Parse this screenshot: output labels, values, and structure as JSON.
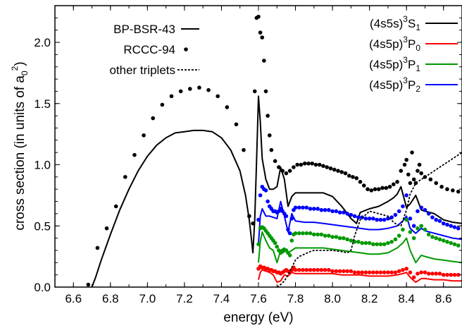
{
  "chart_data": {
    "type": "line",
    "xlabel": "energy (eV)",
    "ylabel": {
      "main": "cross section (in units of a",
      "sub": "0",
      "sup": "2",
      "close": ")"
    },
    "xlim": [
      6.5,
      8.7
    ],
    "ylim": [
      0.0,
      2.3
    ],
    "xticks": [
      "6.6",
      "6.8",
      "7.0",
      "7.2",
      "7.4",
      "7.6",
      "7.8",
      "8.0",
      "8.2",
      "8.4",
      "8.6"
    ],
    "yticks": [
      "0.0",
      "0.5",
      "1.0",
      "1.5",
      "2.0"
    ],
    "legend_methods": [
      {
        "label": "BP-BSR-43",
        "style": "solid"
      },
      {
        "label": "RCCC-94",
        "style": "dots"
      },
      {
        "label": "other triplets",
        "style": "dashed"
      }
    ],
    "legend_states": [
      {
        "pre": "(4s5s)",
        "sup": "3",
        "term": "S",
        "sub": "1",
        "color": "#000000"
      },
      {
        "pre": "(4s5p)",
        "sup": "3",
        "term": "P",
        "sub": "0",
        "color": "#ff0000"
      },
      {
        "pre": "(4s5p)",
        "sup": "3",
        "term": "P",
        "sub": "1",
        "color": "#009900"
      },
      {
        "pre": "(4s5p)",
        "sup": "3",
        "term": "P",
        "sub": "2",
        "color": "#0000ff"
      }
    ],
    "series": [
      {
        "name": "(4s5s)3S1 BP-BSR-43",
        "color": "#000000",
        "style": "solid",
        "x": [
          6.7,
          6.72,
          6.75,
          6.8,
          6.85,
          6.9,
          6.95,
          7.0,
          7.05,
          7.1,
          7.15,
          7.2,
          7.25,
          7.3,
          7.35,
          7.4,
          7.45,
          7.5,
          7.53,
          7.55,
          7.56,
          7.57,
          7.58,
          7.59,
          7.6,
          7.61,
          7.62,
          7.64,
          7.66,
          7.68,
          7.7,
          7.72,
          7.74,
          7.76,
          7.78,
          7.8,
          7.85,
          7.9,
          7.95,
          8.0,
          8.05,
          8.1,
          8.13,
          8.15,
          8.2,
          8.25,
          8.3,
          8.33,
          8.35,
          8.37,
          8.4,
          8.42,
          8.45,
          8.48,
          8.5,
          8.55,
          8.6,
          8.65,
          8.7
        ],
        "y": [
          0.0,
          0.08,
          0.22,
          0.43,
          0.63,
          0.8,
          0.95,
          1.07,
          1.16,
          1.22,
          1.26,
          1.27,
          1.28,
          1.28,
          1.27,
          1.22,
          1.12,
          0.95,
          0.75,
          0.55,
          0.42,
          0.28,
          0.55,
          1.05,
          1.56,
          1.35,
          1.05,
          0.88,
          0.8,
          0.8,
          0.82,
          0.98,
          0.88,
          0.66,
          0.74,
          0.77,
          0.77,
          0.77,
          0.77,
          0.74,
          0.66,
          0.56,
          0.52,
          0.61,
          0.64,
          0.66,
          0.7,
          0.73,
          0.76,
          0.82,
          0.65,
          0.68,
          0.75,
          0.63,
          0.62,
          0.6,
          0.55,
          0.53,
          0.52
        ]
      },
      {
        "name": "(4s5s)3S1 RCCC-94",
        "color": "#000000",
        "style": "dots",
        "x": [
          6.68,
          6.73,
          6.78,
          6.83,
          6.88,
          6.93,
          6.98,
          7.03,
          7.08,
          7.13,
          7.18,
          7.23,
          7.28,
          7.33,
          7.38,
          7.43,
          7.48,
          7.52,
          7.55,
          7.57,
          7.58,
          7.59,
          7.6,
          7.61,
          7.62,
          7.63,
          7.64,
          7.65,
          7.66,
          7.67,
          7.69,
          7.71,
          7.73,
          7.75,
          7.77,
          7.79,
          7.81,
          7.83,
          7.85,
          7.87,
          7.89,
          7.91,
          7.93,
          7.95,
          7.97,
          7.99,
          8.01,
          8.03,
          8.05,
          8.07,
          8.09,
          8.11,
          8.13,
          8.15,
          8.17,
          8.19,
          8.21,
          8.23,
          8.25,
          8.27,
          8.29,
          8.31,
          8.33,
          8.35,
          8.37,
          8.39,
          8.4,
          8.41,
          8.42,
          8.43,
          8.44,
          8.45,
          8.46,
          8.47,
          8.48,
          8.5,
          8.53,
          8.56,
          8.59,
          8.62,
          8.65,
          8.68
        ],
        "y": [
          0.02,
          0.32,
          0.48,
          0.66,
          0.9,
          1.08,
          1.24,
          1.38,
          1.49,
          1.56,
          1.6,
          1.62,
          1.63,
          1.61,
          1.56,
          1.47,
          1.33,
          1.12,
          0.58,
          0.52,
          1.6,
          2.2,
          2.21,
          2.08,
          2.04,
          1.85,
          1.6,
          1.4,
          1.24,
          1.12,
          1.03,
          0.98,
          0.95,
          0.93,
          0.95,
          0.98,
          1.0,
          1.0,
          1.01,
          1.01,
          1.01,
          1.0,
          1.0,
          0.99,
          0.98,
          0.97,
          0.96,
          0.95,
          0.94,
          0.93,
          0.91,
          0.9,
          0.89,
          0.86,
          0.83,
          0.8,
          0.79,
          0.8,
          0.8,
          0.81,
          0.81,
          0.82,
          0.84,
          0.86,
          0.95,
          1.0,
          1.04,
          0.92,
          0.85,
          1.1,
          0.88,
          0.85,
          0.95,
          1.0,
          0.93,
          0.9,
          0.88,
          0.85,
          0.82,
          0.8,
          0.79,
          0.78
        ]
      },
      {
        "name": "(4s5p)3P2 BP-BSR-43",
        "color": "#0000ff",
        "style": "solid",
        "x": [
          7.6,
          7.61,
          7.62,
          7.64,
          7.66,
          7.68,
          7.7,
          7.72,
          7.74,
          7.76,
          7.78,
          7.8,
          7.85,
          7.9,
          7.95,
          8.0,
          8.05,
          8.1,
          8.15,
          8.2,
          8.25,
          8.3,
          8.35,
          8.38,
          8.4,
          8.42,
          8.45,
          8.48,
          8.5,
          8.55,
          8.6,
          8.65,
          8.7
        ],
        "y": [
          0.35,
          0.58,
          0.64,
          0.58,
          0.58,
          0.57,
          0.56,
          0.7,
          0.58,
          0.45,
          0.6,
          0.54,
          0.53,
          0.53,
          0.52,
          0.51,
          0.5,
          0.49,
          0.48,
          0.47,
          0.47,
          0.48,
          0.5,
          0.54,
          0.58,
          0.48,
          0.44,
          0.48,
          0.46,
          0.44,
          0.42,
          0.4,
          0.39
        ]
      },
      {
        "name": "(4s5p)3P2 RCCC-94",
        "color": "#0000ff",
        "style": "dots",
        "x": [
          7.6,
          7.61,
          7.62,
          7.63,
          7.64,
          7.65,
          7.66,
          7.67,
          7.68,
          7.69,
          7.7,
          7.71,
          7.72,
          7.73,
          7.74,
          7.75,
          7.76,
          7.77,
          7.78,
          7.79,
          7.8,
          7.82,
          7.84,
          7.86,
          7.88,
          7.9,
          7.92,
          7.94,
          7.96,
          7.98,
          8.0,
          8.02,
          8.04,
          8.06,
          8.08,
          8.1,
          8.12,
          8.14,
          8.16,
          8.18,
          8.2,
          8.22,
          8.24,
          8.26,
          8.28,
          8.3,
          8.32,
          8.34,
          8.36,
          8.38,
          8.4,
          8.42,
          8.44,
          8.46,
          8.48,
          8.5,
          8.52,
          8.54,
          8.56,
          8.58,
          8.6,
          8.62,
          8.64,
          8.66,
          8.68
        ],
        "y": [
          0.55,
          0.75,
          0.82,
          0.8,
          0.79,
          0.7,
          0.66,
          0.64,
          0.62,
          0.62,
          0.61,
          0.62,
          0.64,
          0.62,
          0.6,
          0.58,
          0.47,
          0.44,
          0.56,
          0.63,
          0.65,
          0.65,
          0.65,
          0.65,
          0.64,
          0.64,
          0.64,
          0.63,
          0.63,
          0.63,
          0.62,
          0.62,
          0.61,
          0.61,
          0.6,
          0.59,
          0.58,
          0.57,
          0.57,
          0.56,
          0.56,
          0.56,
          0.55,
          0.55,
          0.55,
          0.56,
          0.57,
          0.59,
          0.62,
          0.66,
          0.75,
          0.56,
          0.5,
          0.62,
          0.65,
          0.63,
          0.6,
          0.57,
          0.55,
          0.54,
          0.52,
          0.51,
          0.5,
          0.49,
          0.48
        ]
      },
      {
        "name": "(4s5p)3P1 BP-BSR-43",
        "color": "#009900",
        "style": "solid",
        "x": [
          7.6,
          7.61,
          7.62,
          7.64,
          7.66,
          7.68,
          7.7,
          7.72,
          7.74,
          7.76,
          7.78,
          7.8,
          7.85,
          7.9,
          7.95,
          8.0,
          8.05,
          8.1,
          8.15,
          8.2,
          8.25,
          8.3,
          8.35,
          8.38,
          8.4,
          8.42,
          8.45,
          8.48,
          8.5,
          8.55,
          8.6,
          8.65,
          8.7
        ],
        "y": [
          0.2,
          0.37,
          0.45,
          0.38,
          0.32,
          0.3,
          0.2,
          0.3,
          0.32,
          0.28,
          0.3,
          0.32,
          0.32,
          0.32,
          0.32,
          0.31,
          0.3,
          0.29,
          0.28,
          0.27,
          0.27,
          0.28,
          0.32,
          0.36,
          0.4,
          0.3,
          0.2,
          0.26,
          0.25,
          0.23,
          0.22,
          0.21,
          0.2
        ]
      },
      {
        "name": "(4s5p)3P1 RCCC-94",
        "color": "#009900",
        "style": "dots",
        "x": [
          7.6,
          7.61,
          7.62,
          7.63,
          7.64,
          7.65,
          7.66,
          7.67,
          7.68,
          7.69,
          7.7,
          7.71,
          7.72,
          7.73,
          7.74,
          7.75,
          7.76,
          7.77,
          7.78,
          7.79,
          7.8,
          7.82,
          7.84,
          7.86,
          7.88,
          7.9,
          7.92,
          7.94,
          7.96,
          7.98,
          8.0,
          8.02,
          8.04,
          8.06,
          8.08,
          8.1,
          8.12,
          8.14,
          8.16,
          8.18,
          8.2,
          8.22,
          8.24,
          8.26,
          8.28,
          8.3,
          8.32,
          8.34,
          8.36,
          8.38,
          8.4,
          8.42,
          8.44,
          8.46,
          8.48,
          8.5,
          8.52,
          8.54,
          8.56,
          8.58,
          8.6,
          8.62,
          8.64,
          8.66,
          8.68
        ],
        "y": [
          0.35,
          0.48,
          0.49,
          0.48,
          0.46,
          0.44,
          0.42,
          0.4,
          0.38,
          0.36,
          0.33,
          0.3,
          0.28,
          0.29,
          0.3,
          0.3,
          0.28,
          0.26,
          0.38,
          0.43,
          0.44,
          0.44,
          0.44,
          0.44,
          0.44,
          0.43,
          0.43,
          0.43,
          0.42,
          0.42,
          0.41,
          0.41,
          0.4,
          0.4,
          0.39,
          0.38,
          0.37,
          0.37,
          0.36,
          0.36,
          0.36,
          0.35,
          0.35,
          0.35,
          0.35,
          0.36,
          0.37,
          0.39,
          0.42,
          0.47,
          0.55,
          0.45,
          0.4,
          0.48,
          0.5,
          0.47,
          0.43,
          0.41,
          0.4,
          0.39,
          0.38,
          0.37,
          0.36,
          0.35,
          0.34
        ]
      },
      {
        "name": "(4s5p)3P0 BP-BSR-43",
        "color": "#ff0000",
        "style": "solid",
        "x": [
          7.6,
          7.61,
          7.62,
          7.64,
          7.66,
          7.68,
          7.7,
          7.72,
          7.74,
          7.76,
          7.78,
          7.8,
          7.85,
          7.9,
          7.95,
          8.0,
          8.05,
          8.1,
          8.15,
          8.2,
          8.25,
          8.3,
          8.35,
          8.38,
          8.4,
          8.42,
          8.45,
          8.48,
          8.5,
          8.55,
          8.6,
          8.65,
          8.7
        ],
        "y": [
          0.06,
          0.12,
          0.14,
          0.13,
          0.12,
          0.1,
          0.04,
          0.05,
          0.1,
          0.09,
          0.12,
          0.11,
          0.11,
          0.11,
          0.11,
          0.11,
          0.1,
          0.1,
          0.1,
          0.09,
          0.09,
          0.09,
          0.1,
          0.11,
          0.12,
          0.08,
          0.04,
          0.07,
          0.07,
          0.06,
          0.06,
          0.05,
          0.05
        ]
      },
      {
        "name": "(4s5p)3P0 RCCC-94",
        "color": "#ff0000",
        "style": "dots",
        "x": [
          7.6,
          7.61,
          7.62,
          7.63,
          7.64,
          7.65,
          7.66,
          7.67,
          7.68,
          7.69,
          7.7,
          7.71,
          7.72,
          7.73,
          7.74,
          7.75,
          7.76,
          7.77,
          7.78,
          7.79,
          7.8,
          7.82,
          7.84,
          7.86,
          7.88,
          7.9,
          7.92,
          7.94,
          7.96,
          7.98,
          8.0,
          8.02,
          8.04,
          8.06,
          8.08,
          8.1,
          8.12,
          8.14,
          8.16,
          8.18,
          8.2,
          8.22,
          8.24,
          8.26,
          8.28,
          8.3,
          8.32,
          8.34,
          8.36,
          8.38,
          8.4,
          8.42,
          8.44,
          8.46,
          8.48,
          8.5,
          8.52,
          8.54,
          8.56,
          8.58,
          8.6,
          8.62,
          8.64,
          8.66,
          8.68
        ],
        "y": [
          0.15,
          0.17,
          0.16,
          0.16,
          0.15,
          0.15,
          0.14,
          0.14,
          0.13,
          0.13,
          0.12,
          0.12,
          0.11,
          0.12,
          0.13,
          0.14,
          0.13,
          0.12,
          0.14,
          0.16,
          0.14,
          0.14,
          0.14,
          0.14,
          0.14,
          0.14,
          0.14,
          0.14,
          0.14,
          0.14,
          0.13,
          0.13,
          0.13,
          0.13,
          0.13,
          0.13,
          0.12,
          0.12,
          0.12,
          0.12,
          0.12,
          0.12,
          0.12,
          0.12,
          0.12,
          0.12,
          0.12,
          0.12,
          0.13,
          0.14,
          0.15,
          0.12,
          0.08,
          0.11,
          0.12,
          0.12,
          0.11,
          0.11,
          0.11,
          0.11,
          0.1,
          0.1,
          0.1,
          0.1,
          0.1
        ]
      },
      {
        "name": "other triplets",
        "color": "#000000",
        "style": "dashed",
        "x": [
          7.7,
          7.72,
          7.74,
          7.76,
          7.78,
          7.8,
          7.82,
          7.85,
          7.88,
          7.9,
          7.95,
          8.0,
          8.05,
          8.08,
          8.1,
          8.12,
          8.15,
          8.2,
          8.25,
          8.3,
          8.33,
          8.35,
          8.37,
          8.4,
          8.42,
          8.45,
          8.5,
          8.55,
          8.6,
          8.65,
          8.7
        ],
        "y": [
          0.0,
          0.02,
          0.05,
          0.1,
          0.16,
          0.22,
          0.25,
          0.27,
          0.29,
          0.3,
          0.3,
          0.3,
          0.29,
          0.28,
          0.3,
          0.42,
          0.55,
          0.62,
          0.6,
          0.58,
          0.53,
          0.51,
          0.5,
          0.63,
          0.76,
          0.85,
          0.9,
          0.95,
          1.0,
          1.05,
          1.1
        ]
      }
    ]
  }
}
